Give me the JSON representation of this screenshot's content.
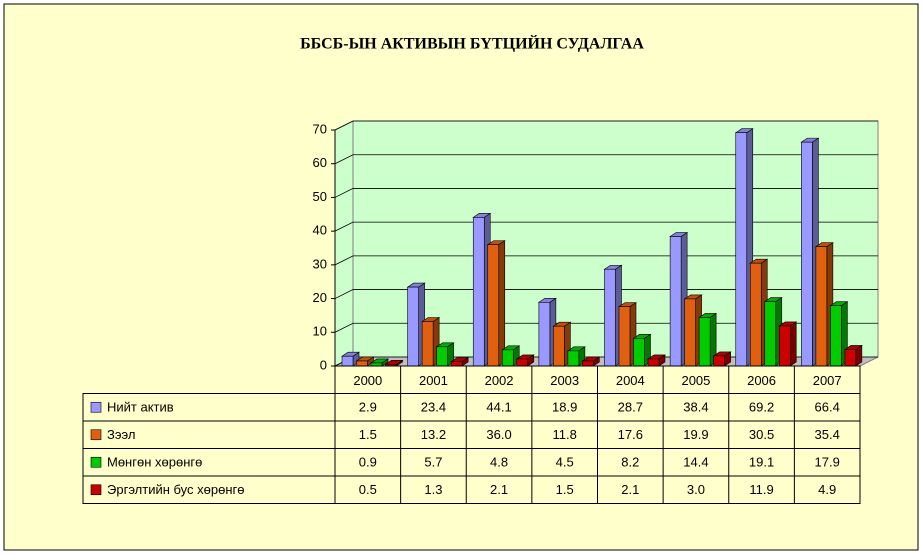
{
  "chart_data": {
    "type": "bar",
    "title": "ББСБ-ЫН АКТИВЫН БҮТЦИЙН СУДАЛГАА",
    "categories": [
      "2000",
      "2001",
      "2002",
      "2003",
      "2004",
      "2005",
      "2006",
      "2007"
    ],
    "series": [
      {
        "name": "Нийт актив",
        "color": "#9999ff",
        "values": [
          2.9,
          23.4,
          44.1,
          18.9,
          28.7,
          38.4,
          69.2,
          66.4
        ],
        "value_labels": [
          "2.9",
          "23.4",
          "44.1",
          "18.9",
          "28.7",
          "38.4",
          "69.2",
          "66.4"
        ]
      },
      {
        "name": "Зээл",
        "color": "#e0600f",
        "values": [
          1.5,
          13.2,
          36.0,
          11.8,
          17.6,
          19.9,
          30.5,
          35.4
        ],
        "value_labels": [
          "1.5",
          "13.2",
          "36.0",
          "11.8",
          "17.6",
          "19.9",
          "30.5",
          "35.4"
        ]
      },
      {
        "name": "Мөнгөн хөрөнгө",
        "color": "#00cc00",
        "values": [
          0.9,
          5.7,
          4.8,
          4.5,
          8.2,
          14.4,
          19.1,
          17.9
        ],
        "value_labels": [
          "0.9",
          "5.7",
          "4.8",
          "4.5",
          "8.2",
          "14.4",
          "19.1",
          "17.9"
        ]
      },
      {
        "name": "Эргэлтийн бус хөрөнгө",
        "color": "#cc0000",
        "values": [
          0.5,
          1.3,
          2.1,
          1.5,
          2.1,
          3.0,
          11.9,
          4.9
        ],
        "value_labels": [
          "0.5",
          "1.3",
          "2.1",
          "1.5",
          "2.1",
          "3.0",
          "11.9",
          "4.9"
        ]
      }
    ],
    "ylim": [
      0,
      70
    ],
    "yticks": [
      0,
      10,
      20,
      30,
      40,
      50,
      60,
      70
    ],
    "grid": true
  }
}
